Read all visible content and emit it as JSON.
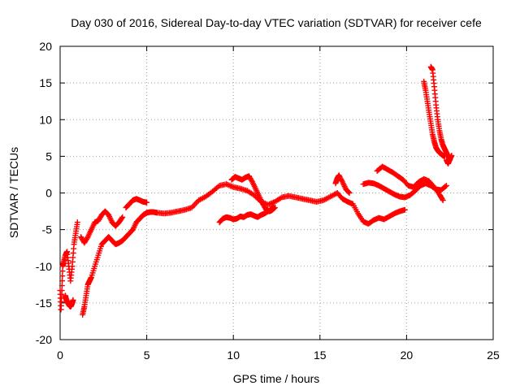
{
  "chart_data": {
    "type": "scatter",
    "title": "Day 030 of 2016, Sidereal Day-to-day VTEC variation (SDTVAR) for receiver cefe",
    "xlabel": "GPS time / hours",
    "ylabel": "SDTVAR / TECUs",
    "xlim": [
      0,
      25
    ],
    "ylim": [
      -20,
      20
    ],
    "xticks": [
      0,
      5,
      10,
      15,
      20,
      25
    ],
    "yticks": [
      -20,
      -15,
      -10,
      -5,
      0,
      5,
      10,
      15,
      20
    ],
    "grid": true,
    "marker": "+",
    "color": "#ff0000",
    "series": [
      {
        "name": "segment-1",
        "x": [
          0.0,
          0.05,
          0.1,
          0.15,
          0.2,
          0.3,
          0.4,
          0.5,
          0.6,
          0.7,
          0.8,
          0.9,
          1.0
        ],
        "y": [
          -13.3,
          -15.9,
          -13.3,
          -10.0,
          -9.5,
          -8.5,
          -8.0,
          -10.0,
          -12.0,
          -10.0,
          -7.0,
          -5.5,
          -4.0
        ]
      },
      {
        "name": "segment-2",
        "x": [
          0.3,
          0.35,
          0.4,
          0.45,
          0.5,
          0.55,
          0.6,
          0.65,
          0.7,
          0.75
        ],
        "y": [
          -14.0,
          -14.5,
          -14.8,
          -15.0,
          -15.2,
          -15.4,
          -15.5,
          -15.3,
          -15.0,
          -14.6
        ]
      },
      {
        "name": "segment-3",
        "x": [
          1.3,
          1.4,
          1.5,
          1.6,
          1.7,
          1.8,
          2.0,
          2.2,
          2.4,
          2.6,
          2.8,
          3.0,
          3.2,
          3.4,
          3.6,
          3.8,
          4.0,
          4.2,
          4.4,
          4.6,
          4.8,
          5.0,
          5.2,
          5.4,
          5.6,
          6.0,
          6.4,
          6.8,
          7.2,
          7.6,
          8.0,
          8.4,
          8.8,
          9.2,
          9.6,
          10.0,
          10.4,
          10.8,
          11.2,
          11.6,
          12.0,
          12.4,
          12.8,
          13.2,
          13.6,
          14.0,
          14.4,
          14.8,
          15.2,
          15.6,
          16.0
        ],
        "y": [
          -16.6,
          -15.5,
          -14.0,
          -12.5,
          -12.0,
          -11.5,
          -10.0,
          -8.5,
          -7.0,
          -6.5,
          -6.0,
          -6.5,
          -7.0,
          -6.8,
          -6.5,
          -6.0,
          -5.5,
          -5.0,
          -4.0,
          -3.5,
          -3.0,
          -2.7,
          -2.6,
          -2.6,
          -2.7,
          -2.8,
          -2.7,
          -2.5,
          -2.3,
          -2.0,
          -1.0,
          -0.5,
          0.2,
          1.0,
          1.2,
          0.8,
          0.6,
          0.3,
          -0.3,
          -1.2,
          -1.6,
          -1.2,
          -0.6,
          -0.4,
          -0.6,
          -0.8,
          -1.0,
          -1.2,
          -1.0,
          -0.5,
          0.0
        ]
      },
      {
        "name": "segment-4",
        "x": [
          1.2,
          1.4,
          1.6,
          1.8,
          2.0,
          2.2,
          2.4,
          2.6,
          2.8,
          3.0,
          3.2,
          3.4,
          3.6
        ],
        "y": [
          -6.0,
          -6.8,
          -6.0,
          -5.0,
          -4.0,
          -3.8,
          -3.0,
          -2.5,
          -3.0,
          -4.0,
          -4.5,
          -4.0,
          -3.3
        ]
      },
      {
        "name": "segment-5",
        "x": [
          3.8,
          4.0,
          4.2,
          4.4,
          4.6,
          4.8,
          5.0
        ],
        "y": [
          -2.0,
          -1.5,
          -1.0,
          -0.8,
          -1.0,
          -1.2,
          -1.3
        ]
      },
      {
        "name": "segment-6",
        "x": [
          9.2,
          9.4,
          9.6,
          9.8,
          10.0,
          10.2,
          10.4,
          10.6,
          10.8,
          11.0,
          11.2,
          11.4,
          11.6,
          11.8,
          12.0,
          12.2,
          12.4
        ],
        "y": [
          -4.0,
          -3.5,
          -3.3,
          -3.4,
          -3.6,
          -3.5,
          -3.2,
          -3.3,
          -3.0,
          -2.9,
          -3.1,
          -3.3,
          -3.0,
          -2.8,
          -2.5,
          -2.4,
          -2.0
        ]
      },
      {
        "name": "segment-7",
        "x": [
          9.9,
          10.1,
          10.3,
          10.5,
          10.7,
          10.9,
          11.1,
          11.3,
          11.5,
          11.7,
          11.9,
          12.1,
          12.3
        ],
        "y": [
          1.8,
          2.2,
          2.0,
          1.8,
          2.1,
          2.3,
          1.5,
          0.5,
          -0.5,
          -1.5,
          -2.3,
          -2.5,
          -1.8
        ]
      },
      {
        "name": "segment-8",
        "x": [
          16.0,
          16.3,
          16.6,
          16.9,
          17.2,
          17.5,
          17.8,
          18.1,
          18.4,
          18.7,
          19.0,
          19.3,
          19.6,
          19.9
        ],
        "y": [
          0.0,
          -0.8,
          -1.2,
          -1.5,
          -2.8,
          -3.9,
          -4.2,
          -3.7,
          -3.4,
          -3.6,
          -3.2,
          -2.8,
          -2.5,
          -2.3
        ]
      },
      {
        "name": "segment-9",
        "x": [
          15.9,
          16.0,
          16.1,
          16.3,
          16.5,
          16.7
        ],
        "y": [
          1.3,
          2.0,
          2.4,
          1.5,
          0.5,
          0.0
        ]
      },
      {
        "name": "segment-10",
        "x": [
          17.5,
          17.8,
          18.1,
          18.4,
          18.7,
          19.0,
          19.3,
          19.6,
          19.9,
          20.2,
          20.5,
          20.8,
          21.1,
          21.4,
          21.7,
          22.0,
          22.3
        ],
        "y": [
          1.2,
          1.4,
          1.3,
          1.0,
          0.6,
          0.2,
          -0.2,
          -0.5,
          -0.6,
          -0.3,
          0.3,
          1.0,
          1.3,
          1.0,
          0.5,
          0.4,
          1.0
        ]
      },
      {
        "name": "segment-11",
        "x": [
          18.3,
          18.6,
          18.9,
          19.2,
          19.5,
          19.8,
          20.1,
          20.4,
          20.7,
          21.0,
          21.3,
          21.6,
          21.9,
          22.1
        ],
        "y": [
          3.0,
          3.6,
          3.2,
          2.8,
          2.3,
          1.8,
          1.0,
          0.8,
          1.5,
          1.9,
          1.6,
          0.8,
          -0.2,
          -1.0
        ]
      },
      {
        "name": "segment-12",
        "x": [
          21.0,
          21.1,
          21.2,
          21.3,
          21.4,
          21.5,
          21.6,
          21.7,
          21.8,
          21.9,
          22.0,
          22.1,
          22.2
        ],
        "y": [
          15.2,
          14.0,
          12.5,
          11.0,
          9.5,
          8.0,
          7.0,
          6.2,
          5.8,
          5.5,
          5.3,
          5.1,
          5.0
        ]
      },
      {
        "name": "segment-13",
        "x": [
          21.4,
          21.5,
          21.6,
          21.7,
          21.8,
          21.9,
          22.0,
          22.1,
          22.2,
          22.3,
          22.4,
          22.5
        ],
        "y": [
          17.2,
          16.8,
          14.5,
          12.0,
          10.0,
          8.5,
          7.3,
          6.5,
          6.0,
          5.5,
          5.0,
          4.5
        ]
      },
      {
        "name": "segment-14",
        "x": [
          22.3,
          22.4,
          22.5,
          22.6
        ],
        "y": [
          4.5,
          4.0,
          4.6,
          5.1
        ]
      }
    ]
  }
}
